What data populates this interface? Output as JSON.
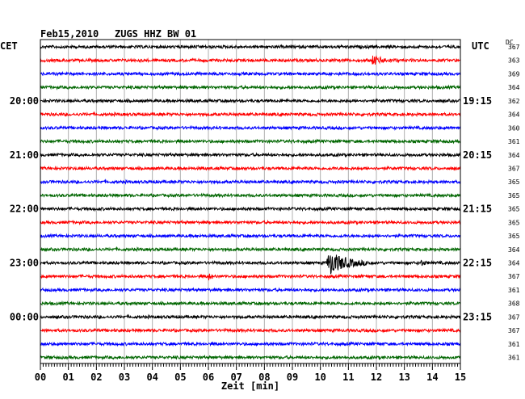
{
  "header": {
    "date": "Feb15,2010",
    "station": "ZUGS HHZ BW 01",
    "left_tz": "CET",
    "right_tz": "UTC",
    "dc_label": "DC"
  },
  "chart_data": {
    "type": "seismogram-helicorder",
    "title": "Feb15,2010   ZUGS HHZ BW 01",
    "xlabel": "Zeit [min]",
    "xlim": [
      0,
      15
    ],
    "x_ticks": [
      "00",
      "01",
      "02",
      "03",
      "04",
      "05",
      "06",
      "07",
      "08",
      "09",
      "10",
      "11",
      "12",
      "13",
      "14",
      "15"
    ],
    "grid": true,
    "trace_colors": [
      "#000000",
      "#ff0000",
      "#0000ff",
      "#006600"
    ],
    "left_time_labels": [
      {
        "label": "20:00",
        "trace": 4
      },
      {
        "label": "21:00",
        "trace": 8
      },
      {
        "label": "22:00",
        "trace": 12
      },
      {
        "label": "23:00",
        "trace": 16
      },
      {
        "label": "00:00",
        "trace": 20
      }
    ],
    "right_time_labels": [
      {
        "label": "19:15",
        "trace": 4
      },
      {
        "label": "20:15",
        "trace": 8
      },
      {
        "label": "21:15",
        "trace": 12
      },
      {
        "label": "22:15",
        "trace": 16
      },
      {
        "label": "23:15",
        "trace": 20
      }
    ],
    "dc_offsets": [
      "367",
      "363",
      "369",
      "364",
      "362",
      "364",
      "360",
      "361",
      "364",
      "367",
      "365",
      "365",
      "365",
      "365",
      "365",
      "364",
      "364",
      "367",
      "361",
      "368",
      "367",
      "367",
      "361",
      "361"
    ],
    "events": [
      {
        "trace": 1,
        "x_min": 11.8,
        "duration_min": 1.0,
        "amplitude": 0.55
      },
      {
        "trace": 16,
        "x_min": 10.2,
        "duration_min": 1.6,
        "amplitude": 1.6
      },
      {
        "trace": 16,
        "x_min": 13.55,
        "duration_min": 0.35,
        "amplitude": 0.4
      },
      {
        "trace": 17,
        "x_min": 6.0,
        "duration_min": 0.25,
        "amplitude": 0.5
      }
    ]
  }
}
